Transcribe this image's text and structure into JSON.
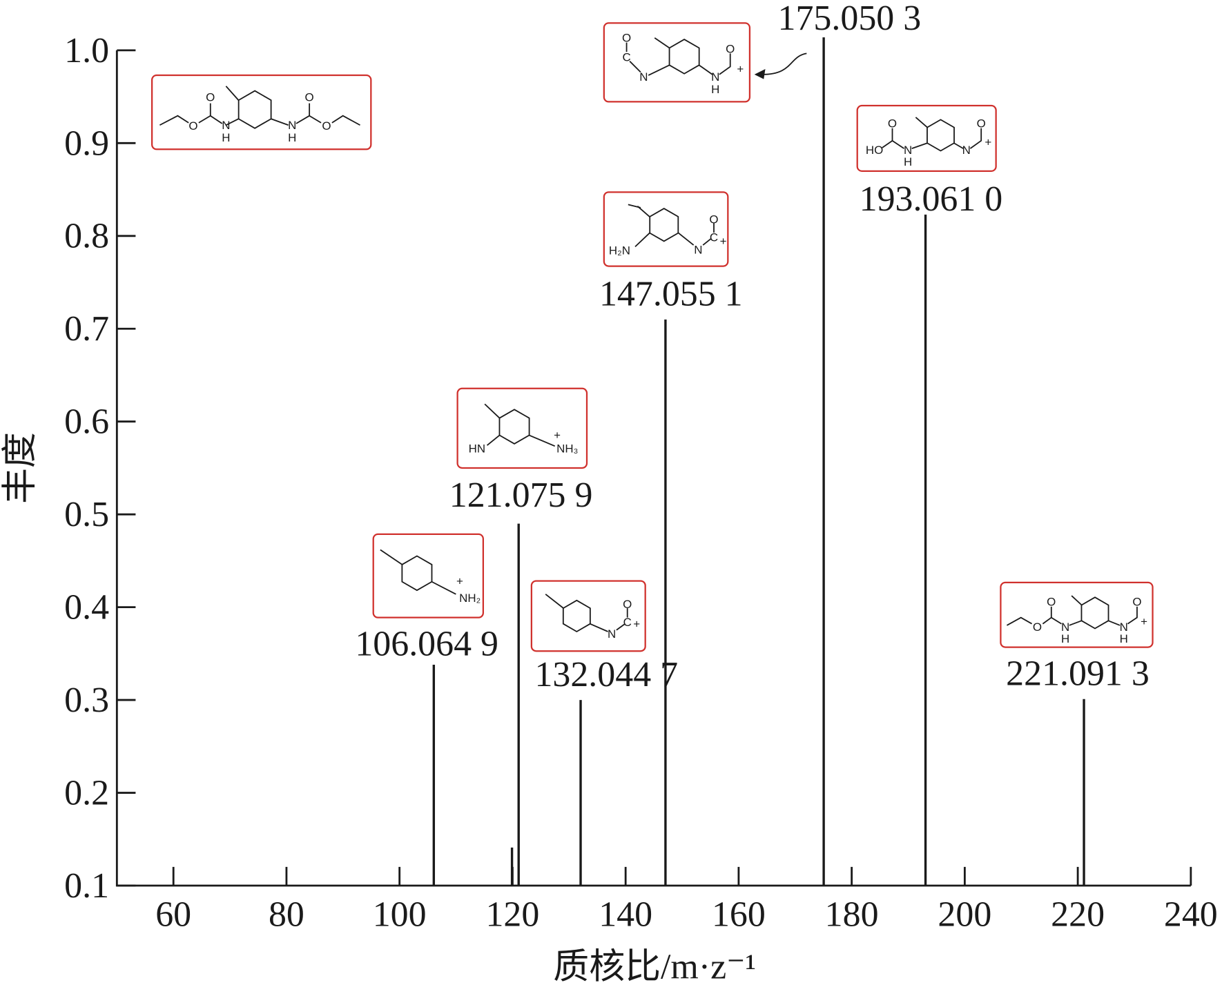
{
  "chart_data": {
    "type": "stem",
    "y_label": "丰度",
    "x_label": "质核比/m·z⁻¹",
    "x": [
      106.0649,
      119.9,
      121.0759,
      132.0447,
      147.0551,
      175.0503,
      193.061,
      221.0913
    ],
    "x_labels": [
      "106.064 9",
      null,
      "121.075 9",
      "132.044 7",
      "147.055 1",
      "175.050 3",
      "193.061 0",
      "221.091 3"
    ],
    "values": [
      0.338,
      0.141,
      0.49,
      0.3,
      0.71,
      1.014,
      0.823,
      0.301
    ],
    "color": "#1a1a1a",
    "xlim": [
      50,
      240
    ],
    "xticks": [
      60,
      80,
      100,
      120,
      140,
      160,
      180,
      200,
      220,
      240
    ],
    "ylim": [
      0.1,
      1.0
    ],
    "yticks": [
      0.1,
      0.2,
      0.3,
      0.4,
      0.5,
      0.6,
      0.7,
      0.8,
      0.9,
      {
        "value": 1,
        "label": "1.0"
      }
    ],
    "structures": [
      {
        "atoms": [
          "O",
          "O",
          "N",
          "H",
          "N",
          "H",
          "O",
          "O"
        ]
      },
      {
        "atoms": [
          "O",
          "C",
          "N",
          "N",
          "H",
          "O",
          "+"
        ]
      },
      {
        "atoms": [
          "HO",
          "O",
          "N",
          "H",
          "N",
          "O",
          "+"
        ]
      },
      {
        "atoms": [
          "H₂N",
          "N",
          "C",
          "O",
          "+"
        ]
      },
      {
        "atoms": [
          "HN",
          "+",
          "NH₃"
        ]
      },
      {
        "atoms": [
          "+",
          "NH₂"
        ]
      },
      {
        "atoms": [
          "N",
          "C",
          "O",
          "+"
        ]
      },
      {
        "atoms": [
          "O",
          "O",
          "N",
          "H",
          "N",
          "H",
          "O",
          "+"
        ]
      }
    ]
  }
}
